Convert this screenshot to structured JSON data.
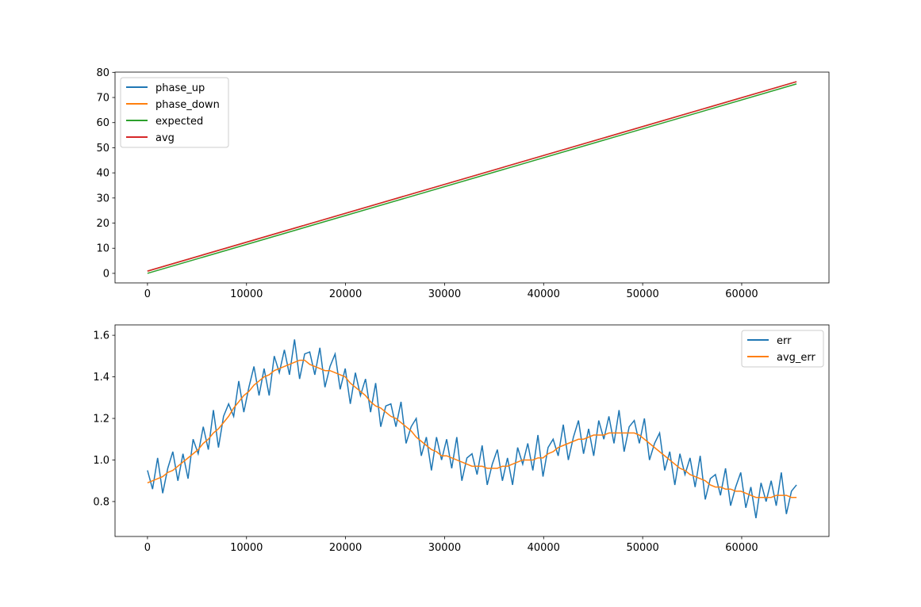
{
  "colors": {
    "phase_up": "#1f77b4",
    "phase_down": "#ff7f0e",
    "expected": "#2ca02c",
    "avg": "#d62728",
    "err": "#1f77b4",
    "avg_err": "#ff7f0e"
  },
  "chart_data": [
    {
      "type": "line",
      "xlim": [
        -3277,
        68813
      ],
      "ylim": [
        -3.8,
        80.1
      ],
      "xticks": [
        0,
        10000,
        20000,
        30000,
        40000,
        50000,
        60000
      ],
      "xtick_labels": [
        "0",
        "10000",
        "20000",
        "30000",
        "40000",
        "50000",
        "60000"
      ],
      "yticks": [
        0,
        10,
        20,
        30,
        40,
        50,
        60,
        70,
        80
      ],
      "ytick_labels": [
        "0",
        "10",
        "20",
        "30",
        "40",
        "50",
        "60",
        "70",
        "80"
      ],
      "legend": "top-left",
      "series": [
        {
          "name": "phase_up",
          "x": [
            0,
            65536
          ],
          "y": [
            0.9,
            76.3
          ]
        },
        {
          "name": "phase_down",
          "x": [
            0,
            65536
          ],
          "y": [
            0.9,
            76.3
          ]
        },
        {
          "name": "expected",
          "x": [
            0,
            65536
          ],
          "y": [
            0,
            75.4
          ]
        },
        {
          "name": "avg",
          "x": [
            0,
            65536
          ],
          "y": [
            0.9,
            76.3
          ]
        }
      ]
    },
    {
      "type": "line",
      "xlim": [
        -3277,
        68813
      ],
      "ylim": [
        0.632,
        1.65
      ],
      "xticks": [
        0,
        10000,
        20000,
        30000,
        40000,
        50000,
        60000
      ],
      "xtick_labels": [
        "0",
        "10000",
        "20000",
        "30000",
        "40000",
        "50000",
        "60000"
      ],
      "yticks": [
        0.8,
        1.0,
        1.2,
        1.4,
        1.6
      ],
      "ytick_labels": [
        "0.8",
        "1.0",
        "1.2",
        "1.4",
        "1.6"
      ],
      "legend": "top-right",
      "x_step": 512,
      "series": [
        {
          "name": "err",
          "y": [
            0.95,
            0.86,
            1.01,
            0.84,
            0.96,
            1.04,
            0.9,
            1.03,
            0.91,
            1.1,
            1.03,
            1.16,
            1.05,
            1.24,
            1.06,
            1.21,
            1.27,
            1.21,
            1.38,
            1.23,
            1.35,
            1.45,
            1.31,
            1.44,
            1.31,
            1.5,
            1.42,
            1.53,
            1.41,
            1.58,
            1.39,
            1.51,
            1.52,
            1.41,
            1.54,
            1.35,
            1.45,
            1.51,
            1.34,
            1.44,
            1.27,
            1.42,
            1.31,
            1.39,
            1.23,
            1.37,
            1.16,
            1.26,
            1.27,
            1.16,
            1.28,
            1.08,
            1.16,
            1.2,
            1.02,
            1.11,
            0.95,
            1.11,
            1.0,
            1.1,
            0.96,
            1.11,
            0.9,
            1.01,
            1.03,
            0.93,
            1.07,
            0.88,
            0.98,
            1.05,
            0.9,
            1.01,
            0.88,
            1.06,
            0.98,
            1.08,
            0.95,
            1.12,
            0.92,
            1.06,
            1.1,
            1.02,
            1.17,
            1.0,
            1.11,
            1.19,
            1.03,
            1.15,
            1.02,
            1.19,
            1.1,
            1.21,
            1.08,
            1.24,
            1.04,
            1.16,
            1.19,
            1.08,
            1.2,
            1.0,
            1.08,
            1.13,
            0.95,
            1.04,
            0.88,
            1.03,
            0.93,
            1.01,
            0.87,
            1.02,
            0.81,
            0.91,
            0.93,
            0.83,
            0.96,
            0.78,
            0.87,
            0.94,
            0.77,
            0.87,
            0.72,
            0.89,
            0.8,
            0.9,
            0.78,
            0.94,
            0.74,
            0.85,
            0.88
          ]
        },
        {
          "name": "avg_err",
          "y": [
            0.89,
            0.9,
            0.91,
            0.92,
            0.94,
            0.95,
            0.97,
            0.99,
            1.01,
            1.03,
            1.05,
            1.08,
            1.1,
            1.13,
            1.15,
            1.18,
            1.21,
            1.25,
            1.28,
            1.31,
            1.33,
            1.36,
            1.38,
            1.4,
            1.41,
            1.43,
            1.44,
            1.45,
            1.46,
            1.47,
            1.48,
            1.48,
            1.46,
            1.45,
            1.44,
            1.43,
            1.43,
            1.42,
            1.41,
            1.4,
            1.37,
            1.35,
            1.33,
            1.31,
            1.28,
            1.26,
            1.25,
            1.23,
            1.21,
            1.2,
            1.18,
            1.16,
            1.14,
            1.11,
            1.09,
            1.07,
            1.05,
            1.04,
            1.02,
            1.02,
            1.01,
            1.0,
            0.99,
            0.98,
            0.97,
            0.97,
            0.97,
            0.96,
            0.96,
            0.96,
            0.97,
            0.97,
            0.98,
            0.99,
            1.0,
            1.0,
            1.0,
            1.01,
            1.01,
            1.03,
            1.04,
            1.06,
            1.07,
            1.08,
            1.09,
            1.1,
            1.1,
            1.11,
            1.12,
            1.12,
            1.12,
            1.13,
            1.13,
            1.13,
            1.13,
            1.13,
            1.13,
            1.12,
            1.1,
            1.08,
            1.06,
            1.04,
            1.02,
            1.0,
            0.98,
            0.96,
            0.95,
            0.93,
            0.92,
            0.91,
            0.9,
            0.88,
            0.87,
            0.87,
            0.86,
            0.86,
            0.85,
            0.85,
            0.84,
            0.83,
            0.82,
            0.82,
            0.82,
            0.82,
            0.83,
            0.83,
            0.83,
            0.82,
            0.82
          ]
        }
      ]
    }
  ]
}
